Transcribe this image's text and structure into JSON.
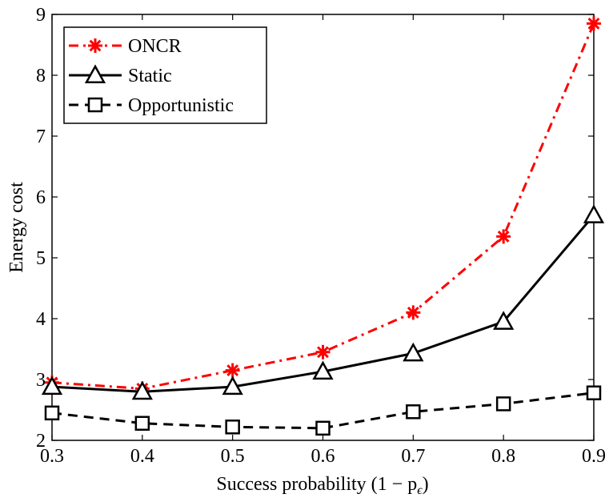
{
  "chart_data": {
    "type": "line",
    "xlabel": "Success probability (1 − p",
    "xlabel_sub": "ϵ",
    "xlabel_end": ")",
    "ylabel": "Energy cost",
    "xlim": [
      0.3,
      0.9
    ],
    "ylim": [
      2,
      9
    ],
    "xticks": [
      "0.3",
      "0.4",
      "0.5",
      "0.6",
      "0.7",
      "0.8",
      "0.9"
    ],
    "yticks": [
      "2",
      "3",
      "4",
      "5",
      "6",
      "7",
      "8",
      "9"
    ],
    "grid": false,
    "legend": "top-left",
    "x": [
      0.3,
      0.4,
      0.5,
      0.6,
      0.7,
      0.8,
      0.9
    ],
    "series": [
      {
        "name": "ONCR",
        "values": [
          2.95,
          2.85,
          3.15,
          3.45,
          4.1,
          5.35,
          8.85
        ],
        "color": "#ff0000",
        "marker": "asterisk",
        "line": "dash-dot"
      },
      {
        "name": "Static",
        "values": [
          2.88,
          2.8,
          2.88,
          3.13,
          3.43,
          3.95,
          5.7
        ],
        "color": "#000000",
        "marker": "triangle",
        "line": "solid"
      },
      {
        "name": "Opportunistic",
        "values": [
          2.45,
          2.28,
          2.22,
          2.2,
          2.47,
          2.6,
          2.78
        ],
        "color": "#000000",
        "marker": "square",
        "line": "dashed"
      }
    ]
  }
}
